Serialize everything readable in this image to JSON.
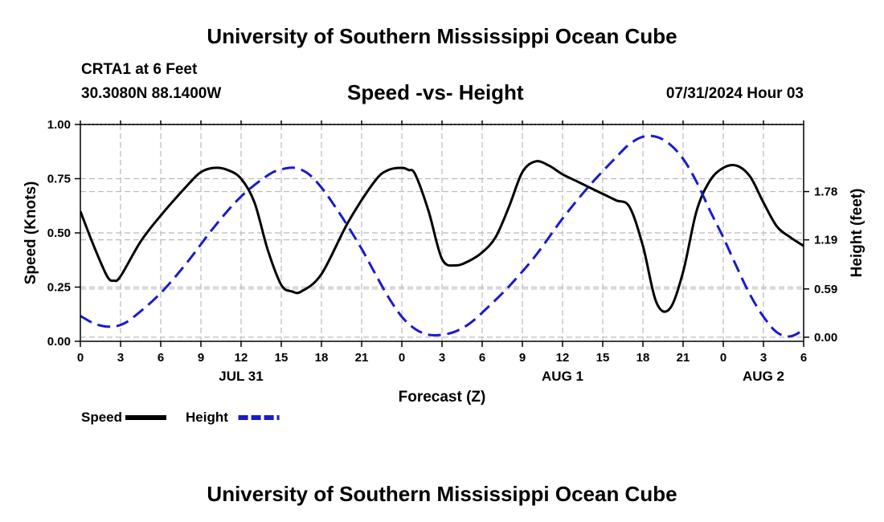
{
  "header": {
    "title": "University of Southern Mississippi Ocean Cube",
    "station": "CRTA1 at 6 Feet",
    "coords": "30.3080N  88.1400W",
    "datetime": "07/31/2024 Hour 03"
  },
  "footer": {
    "title": "University of Southern Mississippi Ocean Cube"
  },
  "chart_data": {
    "type": "line",
    "title": "Speed -vs- Height",
    "xlabel": "Forecast (Z)",
    "ylabel": "Speed (Knots)",
    "ylabel_right": "Height (feet)",
    "xlim": [
      0,
      54
    ],
    "ylim": [
      0,
      1
    ],
    "ylim_right": [
      -0.05,
      2.6
    ],
    "grid": true,
    "x_ticks": [
      0,
      3,
      6,
      9,
      12,
      15,
      18,
      21,
      24,
      27,
      30,
      33,
      36,
      39,
      42,
      45,
      48,
      51,
      54
    ],
    "x_tick_labels": [
      "0",
      "3",
      "6",
      "9",
      "12",
      "15",
      "18",
      "21",
      "0",
      "3",
      "6",
      "9",
      "12",
      "15",
      "18",
      "21",
      "0",
      "3",
      "6"
    ],
    "date_labels": [
      {
        "x": 12,
        "label": "JUL 31"
      },
      {
        "x": 36,
        "label": "AUG 1"
      },
      {
        "x": 51,
        "label": "AUG 2"
      }
    ],
    "y_ticks": [
      0,
      0.25,
      0.5,
      0.75,
      1
    ],
    "y_tick_labels": [
      "0.00",
      "0.25",
      "0.50",
      "0.75",
      "1.00"
    ],
    "y_right_ticks": [
      0,
      0.59,
      1.19,
      1.78
    ],
    "y_right_tick_labels": [
      "0.00",
      "0.59",
      "1.19",
      "1.78"
    ],
    "series": [
      {
        "name": "Speed",
        "axis": "left",
        "color": "#000000",
        "dash": "solid",
        "x": [
          0,
          1,
          2,
          2.5,
          3,
          4.5,
          6,
          8,
          9,
          10,
          11,
          12,
          13,
          14,
          15,
          15.8,
          16.5,
          18,
          20,
          22,
          23,
          24,
          24.5,
          25,
          26,
          27,
          28,
          29,
          30,
          31,
          32,
          33,
          34,
          35,
          36,
          37,
          38,
          39,
          40,
          41,
          42,
          43,
          44,
          45,
          46,
          47,
          48,
          49,
          50,
          51,
          52,
          53,
          54
        ],
        "y": [
          0.6,
          0.44,
          0.3,
          0.28,
          0.3,
          0.46,
          0.58,
          0.72,
          0.78,
          0.8,
          0.79,
          0.75,
          0.64,
          0.42,
          0.26,
          0.23,
          0.23,
          0.31,
          0.55,
          0.74,
          0.79,
          0.8,
          0.79,
          0.77,
          0.6,
          0.38,
          0.35,
          0.37,
          0.41,
          0.48,
          0.62,
          0.78,
          0.83,
          0.81,
          0.77,
          0.74,
          0.71,
          0.68,
          0.65,
          0.62,
          0.44,
          0.18,
          0.15,
          0.32,
          0.6,
          0.74,
          0.8,
          0.81,
          0.76,
          0.64,
          0.53,
          0.48,
          0.44
        ]
      },
      {
        "name": "Height",
        "axis": "right",
        "color": "#1a1acc",
        "dash": "dashed",
        "x": [
          0,
          1,
          2,
          3,
          4,
          6,
          8,
          10,
          12,
          14,
          15,
          16,
          17,
          18,
          19,
          20,
          21,
          22,
          23,
          24,
          25,
          26,
          27,
          28,
          29,
          30,
          32,
          34,
          36,
          38,
          40,
          41,
          42,
          43,
          44,
          45,
          46,
          47,
          48,
          49,
          50,
          51,
          52,
          53,
          54
        ],
        "y": [
          0.26,
          0.17,
          0.13,
          0.15,
          0.25,
          0.54,
          0.92,
          1.35,
          1.72,
          1.98,
          2.05,
          2.07,
          2.0,
          1.83,
          1.6,
          1.35,
          1.08,
          0.78,
          0.49,
          0.25,
          0.1,
          0.03,
          0.03,
          0.07,
          0.16,
          0.3,
          0.62,
          1.0,
          1.45,
          1.85,
          2.2,
          2.36,
          2.45,
          2.45,
          2.36,
          2.18,
          1.9,
          1.55,
          1.22,
          0.86,
          0.52,
          0.25,
          0.06,
          0.01,
          0.09
        ]
      }
    ],
    "legend": [
      {
        "label": "Speed",
        "color": "#000000",
        "dash": "solid"
      },
      {
        "label": "Height",
        "color": "#1a1acc",
        "dash": "dashed"
      }
    ],
    "legend_position": "bottom-left"
  }
}
